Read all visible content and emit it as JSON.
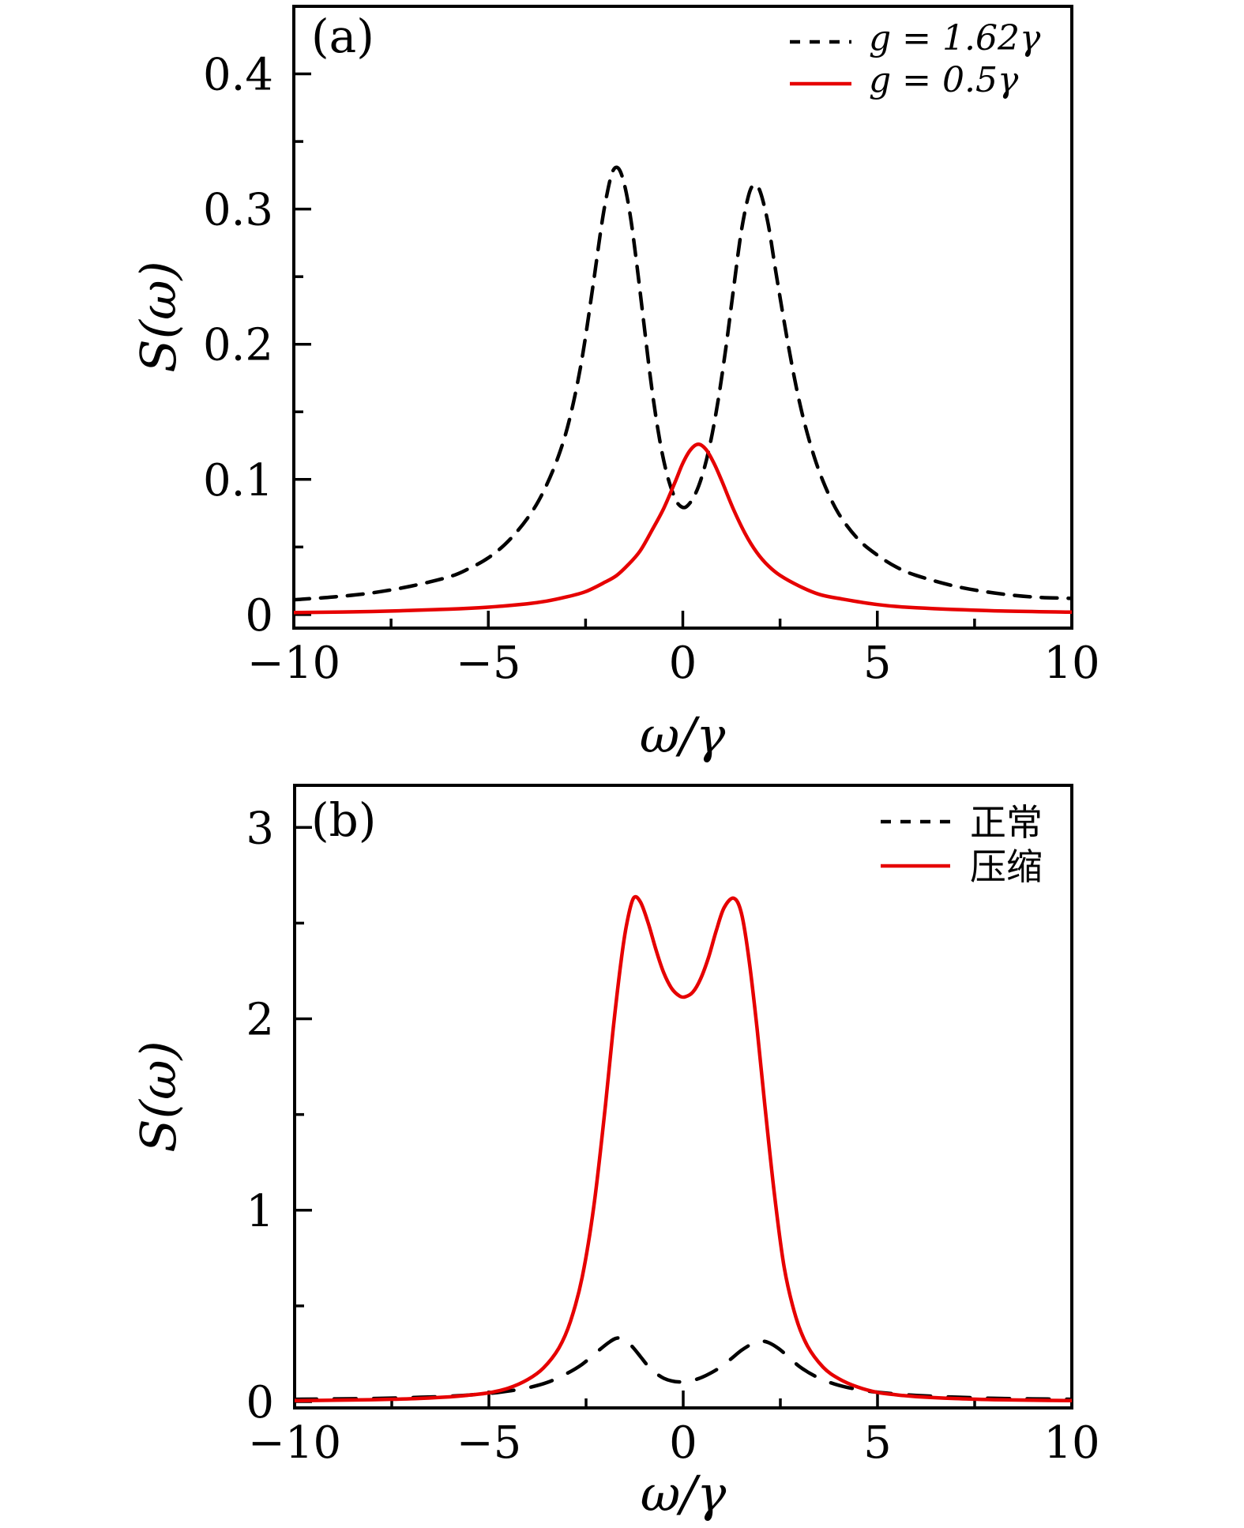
{
  "figure": {
    "background": "#ffffff",
    "axis_color": "#000000",
    "accent_red": "#e60000"
  },
  "chart_data": [
    {
      "type": "line",
      "panel_label": "(a)",
      "xlabel": "ω/γ",
      "ylabel": "S(ω)",
      "xlim": [
        -10,
        10
      ],
      "ylim": [
        -0.01,
        0.45
      ],
      "xticks": [
        [
          -10,
          "−10"
        ],
        [
          -5,
          "−5"
        ],
        [
          0,
          "0"
        ],
        [
          5,
          "5"
        ],
        [
          10,
          "10"
        ]
      ],
      "yticks": [
        [
          0,
          "0"
        ],
        [
          0.1,
          "0.1"
        ],
        [
          0.2,
          "0.2"
        ],
        [
          0.3,
          "0.3"
        ],
        [
          0.4,
          "0.4"
        ]
      ],
      "xminor": [
        -7.5,
        -2.5,
        2.5,
        7.5
      ],
      "yminor": [
        0.05,
        0.15,
        0.25,
        0.35
      ],
      "grid": false,
      "legend_position": "top-right",
      "series": [
        {
          "name": "g = 1.62γ",
          "color": "#000000",
          "line_style": "dashed",
          "points": [
            [
              -10,
              0.011
            ],
            [
              -9,
              0.013
            ],
            [
              -8,
              0.016
            ],
            [
              -7,
              0.021
            ],
            [
              -6,
              0.028
            ],
            [
              -5.5,
              0.034
            ],
            [
              -5,
              0.042
            ],
            [
              -4.5,
              0.054
            ],
            [
              -4,
              0.071
            ],
            [
              -3.6,
              0.09
            ],
            [
              -3.2,
              0.117
            ],
            [
              -2.9,
              0.146
            ],
            [
              -2.6,
              0.188
            ],
            [
              -2.3,
              0.245
            ],
            [
              -2.1,
              0.286
            ],
            [
              -1.95,
              0.311
            ],
            [
              -1.8,
              0.328
            ],
            [
              -1.65,
              0.33
            ],
            [
              -1.5,
              0.318
            ],
            [
              -1.35,
              0.295
            ],
            [
              -1.2,
              0.263
            ],
            [
              -1.0,
              0.215
            ],
            [
              -0.8,
              0.168
            ],
            [
              -0.6,
              0.13
            ],
            [
              -0.4,
              0.103
            ],
            [
              -0.2,
              0.086
            ],
            [
              -0.05,
              0.08
            ],
            [
              0.1,
              0.08
            ],
            [
              0.3,
              0.088
            ],
            [
              0.5,
              0.103
            ],
            [
              0.7,
              0.126
            ],
            [
              0.9,
              0.157
            ],
            [
              1.1,
              0.196
            ],
            [
              1.3,
              0.24
            ],
            [
              1.5,
              0.283
            ],
            [
              1.7,
              0.311
            ],
            [
              1.85,
              0.318
            ],
            [
              2.0,
              0.312
            ],
            [
              2.2,
              0.288
            ],
            [
              2.4,
              0.252
            ],
            [
              2.7,
              0.201
            ],
            [
              3.0,
              0.157
            ],
            [
              3.3,
              0.124
            ],
            [
              3.6,
              0.099
            ],
            [
              4.0,
              0.075
            ],
            [
              4.5,
              0.056
            ],
            [
              5.0,
              0.044
            ],
            [
              5.5,
              0.035
            ],
            [
              6.0,
              0.029
            ],
            [
              7.0,
              0.021
            ],
            [
              8.0,
              0.016
            ],
            [
              9.0,
              0.013
            ],
            [
              10,
              0.012
            ]
          ]
        },
        {
          "name": "g = 0.5γ",
          "color": "#e60000",
          "line_style": "solid",
          "points": [
            [
              -10,
              0.0015
            ],
            [
              -8,
              0.0023
            ],
            [
              -6,
              0.004
            ],
            [
              -5,
              0.0055
            ],
            [
              -4,
              0.008
            ],
            [
              -3.5,
              0.01
            ],
            [
              -3,
              0.013
            ],
            [
              -2.5,
              0.017
            ],
            [
              -2,
              0.024
            ],
            [
              -1.7,
              0.029
            ],
            [
              -1.4,
              0.037
            ],
            [
              -1.1,
              0.047
            ],
            [
              -0.8,
              0.062
            ],
            [
              -0.5,
              0.078
            ],
            [
              -0.2,
              0.098
            ],
            [
              0,
              0.112
            ],
            [
              0.2,
              0.122
            ],
            [
              0.4,
              0.126
            ],
            [
              0.6,
              0.122
            ],
            [
              0.8,
              0.112
            ],
            [
              1.0,
              0.099
            ],
            [
              1.3,
              0.078
            ],
            [
              1.6,
              0.06
            ],
            [
              1.9,
              0.046
            ],
            [
              2.2,
              0.036
            ],
            [
              2.5,
              0.029
            ],
            [
              3,
              0.021
            ],
            [
              3.5,
              0.015
            ],
            [
              4,
              0.012
            ],
            [
              5,
              0.0074
            ],
            [
              6,
              0.005
            ],
            [
              8,
              0.0028
            ],
            [
              10,
              0.0018
            ]
          ]
        }
      ]
    },
    {
      "type": "line",
      "panel_label": "(b)",
      "xlabel": "ω/γ",
      "ylabel": "S(ω)",
      "xlim": [
        -10,
        10
      ],
      "ylim": [
        -0.033,
        3.22
      ],
      "xticks": [
        [
          -10,
          "−10"
        ],
        [
          -5,
          "−5"
        ],
        [
          0,
          "0"
        ],
        [
          5,
          "5"
        ],
        [
          10,
          "10"
        ]
      ],
      "yticks": [
        [
          0,
          "0"
        ],
        [
          1,
          "1"
        ],
        [
          2,
          "2"
        ],
        [
          3,
          "3"
        ]
      ],
      "xminor": [
        -7.5,
        -2.5,
        2.5,
        7.5
      ],
      "yminor": [
        0.5,
        1.5,
        2.5
      ],
      "grid": false,
      "legend_position": "top-right",
      "series": [
        {
          "name": "正常",
          "color": "#000000",
          "line_style": "dashed",
          "points": [
            [
              -10,
              0.012
            ],
            [
              -9,
              0.014
            ],
            [
              -8,
              0.016
            ],
            [
              -7,
              0.021
            ],
            [
              -6,
              0.028
            ],
            [
              -5,
              0.043
            ],
            [
              -4.5,
              0.055
            ],
            [
              -4,
              0.072
            ],
            [
              -3.5,
              0.1
            ],
            [
              -3,
              0.146
            ],
            [
              -2.6,
              0.195
            ],
            [
              -2.2,
              0.263
            ],
            [
              -1.9,
              0.311
            ],
            [
              -1.7,
              0.332
            ],
            [
              -1.5,
              0.325
            ],
            [
              -1.3,
              0.285
            ],
            [
              -1.1,
              0.235
            ],
            [
              -0.9,
              0.185
            ],
            [
              -0.7,
              0.148
            ],
            [
              -0.5,
              0.122
            ],
            [
              -0.3,
              0.108
            ],
            [
              -0.1,
              0.103
            ],
            [
              0.1,
              0.106
            ],
            [
              0.35,
              0.117
            ],
            [
              0.6,
              0.138
            ],
            [
              0.9,
              0.172
            ],
            [
              1.2,
              0.218
            ],
            [
              1.5,
              0.268
            ],
            [
              1.8,
              0.305
            ],
            [
              2.0,
              0.316
            ],
            [
              2.2,
              0.308
            ],
            [
              2.45,
              0.278
            ],
            [
              2.7,
              0.235
            ],
            [
              3.0,
              0.182
            ],
            [
              3.4,
              0.132
            ],
            [
              3.8,
              0.098
            ],
            [
              4.2,
              0.075
            ],
            [
              4.7,
              0.057
            ],
            [
              5.2,
              0.045
            ],
            [
              6,
              0.032
            ],
            [
              7,
              0.023
            ],
            [
              8,
              0.017
            ],
            [
              9,
              0.014
            ],
            [
              10,
              0.012
            ]
          ]
        },
        {
          "name": "压缩",
          "color": "#e60000",
          "line_style": "solid",
          "points": [
            [
              -10,
              0.005
            ],
            [
              -9,
              0.007
            ],
            [
              -8,
              0.01
            ],
            [
              -7,
              0.015
            ],
            [
              -6,
              0.025
            ],
            [
              -5.5,
              0.034
            ],
            [
              -5,
              0.046
            ],
            [
              -4.5,
              0.07
            ],
            [
              -4,
              0.115
            ],
            [
              -3.6,
              0.175
            ],
            [
              -3.2,
              0.28
            ],
            [
              -2.9,
              0.42
            ],
            [
              -2.6,
              0.65
            ],
            [
              -2.3,
              1.02
            ],
            [
              -2.0,
              1.55
            ],
            [
              -1.8,
              1.95
            ],
            [
              -1.6,
              2.3
            ],
            [
              -1.45,
              2.5
            ],
            [
              -1.28,
              2.63
            ],
            [
              -1.1,
              2.61
            ],
            [
              -0.9,
              2.5
            ],
            [
              -0.7,
              2.36
            ],
            [
              -0.5,
              2.24
            ],
            [
              -0.3,
              2.16
            ],
            [
              -0.1,
              2.12
            ],
            [
              0.05,
              2.115
            ],
            [
              0.25,
              2.14
            ],
            [
              0.45,
              2.21
            ],
            [
              0.65,
              2.32
            ],
            [
              0.85,
              2.46
            ],
            [
              1.05,
              2.58
            ],
            [
              1.3,
              2.63
            ],
            [
              1.5,
              2.55
            ],
            [
              1.7,
              2.3
            ],
            [
              1.9,
              1.95
            ],
            [
              2.1,
              1.55
            ],
            [
              2.35,
              1.08
            ],
            [
              2.6,
              0.7
            ],
            [
              2.9,
              0.44
            ],
            [
              3.2,
              0.29
            ],
            [
              3.6,
              0.18
            ],
            [
              4,
              0.12
            ],
            [
              4.5,
              0.075
            ],
            [
              5,
              0.048
            ],
            [
              5.5,
              0.035
            ],
            [
              6,
              0.026
            ],
            [
              7,
              0.016
            ],
            [
              8,
              0.01
            ],
            [
              9,
              0.007
            ],
            [
              10,
              0.005
            ]
          ]
        }
      ]
    }
  ]
}
